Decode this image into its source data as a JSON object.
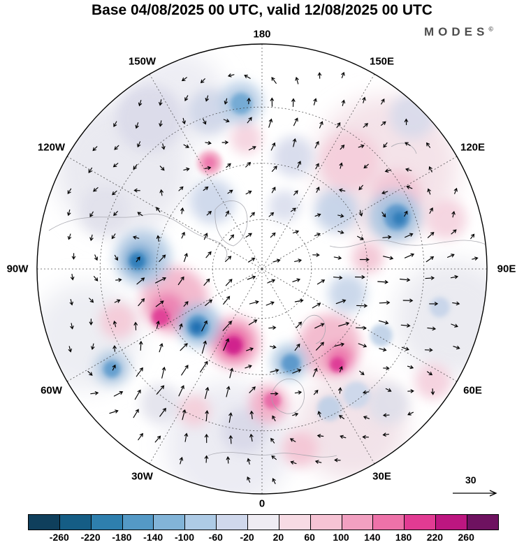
{
  "header": {
    "title": "Base 04/08/2025 00 UTC, valid 12/08/2025 00 UTC",
    "logo_text": "MODES",
    "logo_mark": "©"
  },
  "chart_data": {
    "type": "heatmap",
    "projection": "north-polar-stereographic",
    "title": "Base 04/08/2025 00 UTC, valid 12/08/2025 00 UTC",
    "base_time": "04/08/2025 00 UTC",
    "valid_time": "12/08/2025 00 UTC",
    "lon_labels": [
      {
        "label": "180",
        "angle": 0
      },
      {
        "label": "150E",
        "angle": 30
      },
      {
        "label": "120E",
        "angle": 60
      },
      {
        "label": "90E",
        "angle": 90
      },
      {
        "label": "60E",
        "angle": 120
      },
      {
        "label": "30E",
        "angle": 150
      },
      {
        "label": "0",
        "angle": 180
      },
      {
        "label": "30W",
        "angle": 210
      },
      {
        "label": "60W",
        "angle": 240
      },
      {
        "label": "90W",
        "angle": 270
      },
      {
        "label": "120W",
        "angle": 300
      },
      {
        "label": "150W",
        "angle": 330
      }
    ],
    "graticule": {
      "lat_circle_fracs": [
        0.22,
        0.47,
        0.72
      ],
      "meridian_step_deg": 30
    },
    "colorbar": {
      "colors": [
        "#0f3f5c",
        "#155d85",
        "#2e7fae",
        "#5499c6",
        "#82b4d8",
        "#aecbe6",
        "#d0d8ec",
        "#efecf3",
        "#f7dbe4",
        "#f6c3d4",
        "#f2a0c1",
        "#ee72a9",
        "#e23b93",
        "#bd1680",
        "#6e1260"
      ],
      "tick_labels": [
        "-260",
        "-220",
        "-180",
        "-140",
        "-100",
        "-60",
        "-20",
        "20",
        "60",
        "100",
        "140",
        "180",
        "220",
        "260"
      ]
    },
    "reference_vector": {
      "label": "30"
    },
    "anomaly_washes": [
      [
        -0.62,
        -0.45,
        0.3,
        "#e9e9f0"
      ],
      [
        0.55,
        -0.45,
        0.32,
        "#f3e2e8"
      ],
      [
        0.85,
        0.22,
        0.26,
        "#eaeaf0"
      ],
      [
        -0.78,
        0.3,
        0.24,
        "#ecedf2"
      ],
      [
        -0.15,
        0.78,
        0.28,
        "#ebebf2"
      ],
      [
        0.4,
        0.7,
        0.24,
        "#f1e2e8"
      ],
      [
        -0.38,
        -0.75,
        0.22,
        "#ededf3"
      ],
      [
        0.05,
        -0.14,
        0.22,
        "#ffffff"
      ],
      [
        0.0,
        0.06,
        0.17,
        "#ffffff"
      ]
    ],
    "anomaly_blobs": [
      [
        -0.5,
        -0.67,
        0.15,
        "#dadae9"
      ],
      [
        -0.23,
        -0.7,
        0.1,
        "#cfd6e8"
      ],
      [
        0.67,
        -0.68,
        0.1,
        "#d8daea"
      ],
      [
        0.14,
        -0.5,
        0.09,
        "#d6daeb"
      ],
      [
        -0.7,
        -0.26,
        0.11,
        "#e1e1ec"
      ],
      [
        -0.08,
        0.72,
        0.1,
        "#d8d8e8"
      ],
      [
        0.56,
        0.6,
        0.09,
        "#dedee9"
      ],
      [
        -0.45,
        0.6,
        0.09,
        "#e3e3ed"
      ],
      [
        0.1,
        -0.28,
        0.07,
        "#dadeee"
      ],
      [
        0.39,
        -0.48,
        0.13,
        "#f4cdda"
      ],
      [
        0.6,
        -0.33,
        0.11,
        "#f2c6d5"
      ],
      [
        0.82,
        -0.22,
        0.09,
        "#f4d3de"
      ],
      [
        -0.64,
        0.23,
        0.08,
        "#f4c9d7"
      ],
      [
        0.76,
        0.5,
        0.08,
        "#f4cfdc"
      ],
      [
        0.17,
        0.8,
        0.08,
        "#f3c4d4"
      ],
      [
        -0.3,
        0.63,
        0.07,
        "#f4cdd9"
      ],
      [
        0.47,
        -0.05,
        0.07,
        "#f2c4d4"
      ],
      [
        -0.07,
        -0.58,
        0.07,
        "#f5d2de"
      ],
      [
        -0.39,
        0.14,
        0.15,
        "#f2b4ca"
      ],
      [
        -0.42,
        0.18,
        0.075,
        "#ec7fb1"
      ],
      [
        -0.45,
        0.215,
        0.04,
        "#e03c96"
      ],
      [
        -0.124,
        0.326,
        0.115,
        "#f2a8c3"
      ],
      [
        -0.124,
        0.33,
        0.07,
        "#e75aa1"
      ],
      [
        -0.127,
        0.34,
        0.04,
        "#ce1c8b"
      ],
      [
        0.3,
        0.34,
        0.14,
        "#f2b6cb"
      ],
      [
        0.345,
        0.4,
        0.065,
        "#ec74ab"
      ],
      [
        0.335,
        0.425,
        0.033,
        "#dc3795"
      ],
      [
        -0.233,
        -0.472,
        0.055,
        "#f3a9c6"
      ],
      [
        -0.233,
        -0.472,
        0.03,
        "#ee77ae"
      ],
      [
        0.03,
        0.6,
        0.085,
        "#f2aec7"
      ],
      [
        0.045,
        0.585,
        0.038,
        "#e765a5"
      ],
      [
        -0.093,
        -0.739,
        0.095,
        "#b7cee6"
      ],
      [
        -0.093,
        -0.735,
        0.048,
        "#6fa7d3"
      ],
      [
        -0.53,
        -0.05,
        0.125,
        "#b3cbe4"
      ],
      [
        -0.545,
        -0.04,
        0.065,
        "#5d9bcc"
      ],
      [
        -0.555,
        -0.035,
        0.035,
        "#2e7cb8"
      ],
      [
        -0.22,
        -0.3,
        0.1,
        "#ccd7ea"
      ],
      [
        -0.28,
        0.25,
        0.095,
        "#9fc0df"
      ],
      [
        -0.285,
        0.255,
        0.05,
        "#4f92c7"
      ],
      [
        -0.29,
        0.26,
        0.028,
        "#1f6fb1"
      ],
      [
        0.33,
        -0.26,
        0.095,
        "#c3d2e8"
      ],
      [
        0.59,
        -0.235,
        0.115,
        "#a9c6e1"
      ],
      [
        0.6,
        -0.23,
        0.058,
        "#5796ca"
      ],
      [
        0.61,
        -0.225,
        0.03,
        "#2e7cb8"
      ],
      [
        0.38,
        0.11,
        0.085,
        "#c7d5e9"
      ],
      [
        0.124,
        0.413,
        0.08,
        "#a9c6e1"
      ],
      [
        0.128,
        0.42,
        0.042,
        "#5796ca"
      ],
      [
        -0.667,
        0.44,
        0.075,
        "#aac6e1"
      ],
      [
        -0.667,
        0.445,
        0.038,
        "#5e9ccd"
      ],
      [
        0.53,
        0.295,
        0.05,
        "#bed0e7"
      ],
      [
        0.79,
        0.17,
        0.045,
        "#c6d4e9"
      ],
      [
        0.3,
        0.62,
        0.055,
        "#becfe6"
      ],
      [
        0.42,
        0.56,
        0.06,
        "#cbd7ea"
      ]
    ],
    "wind_field": {
      "vortices": [
        [
          -0.545,
          -0.04,
          1
        ],
        [
          -0.29,
          0.26,
          1
        ],
        [
          0.6,
          -0.23,
          1
        ],
        [
          0.128,
          0.42,
          1
        ],
        [
          -0.667,
          0.445,
          1
        ],
        [
          -0.093,
          -0.735,
          1
        ],
        [
          -0.42,
          0.18,
          -1
        ],
        [
          -0.127,
          0.34,
          -1
        ],
        [
          0.345,
          0.4,
          -1
        ],
        [
          0.03,
          0.6,
          -1
        ],
        [
          0.39,
          -0.48,
          -0.6
        ],
        [
          0.76,
          0.5,
          -0.5
        ]
      ],
      "grid_spacing": 0.1,
      "seed": 42
    }
  }
}
